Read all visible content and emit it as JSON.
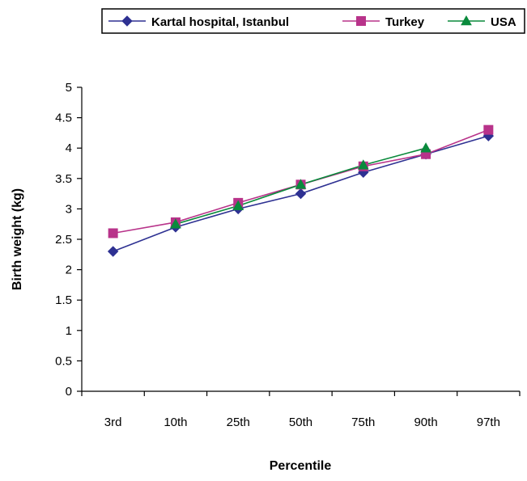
{
  "chart_data": {
    "type": "line",
    "categories": [
      "3rd",
      "10th",
      "25th",
      "50th",
      "75th",
      "90th",
      "97th"
    ],
    "series": [
      {
        "name": "Kartal hospital, Istanbul",
        "values": [
          2.3,
          2.7,
          3.0,
          3.25,
          3.6,
          3.9,
          4.2
        ],
        "color": "#2E3192",
        "marker": "diamond"
      },
      {
        "name": "Turkey",
        "values": [
          2.6,
          2.78,
          3.1,
          3.4,
          3.7,
          3.9,
          4.3
        ],
        "color": "#B8338A",
        "marker": "square"
      },
      {
        "name": "USA",
        "values": [
          null,
          2.75,
          3.05,
          3.4,
          3.72,
          4.0,
          null
        ],
        "color": "#0A8A3C",
        "marker": "triangle"
      }
    ],
    "title": "",
    "xlabel": "Percentile",
    "ylabel": "Birth weight (kg)",
    "ylim": [
      0,
      5
    ],
    "yticks": [
      "0",
      "0.5",
      "1",
      "1.5",
      "2",
      "2.5",
      "3",
      "3.5",
      "4",
      "4.5",
      "5"
    ],
    "grid": false,
    "legend_position": "top-right"
  }
}
